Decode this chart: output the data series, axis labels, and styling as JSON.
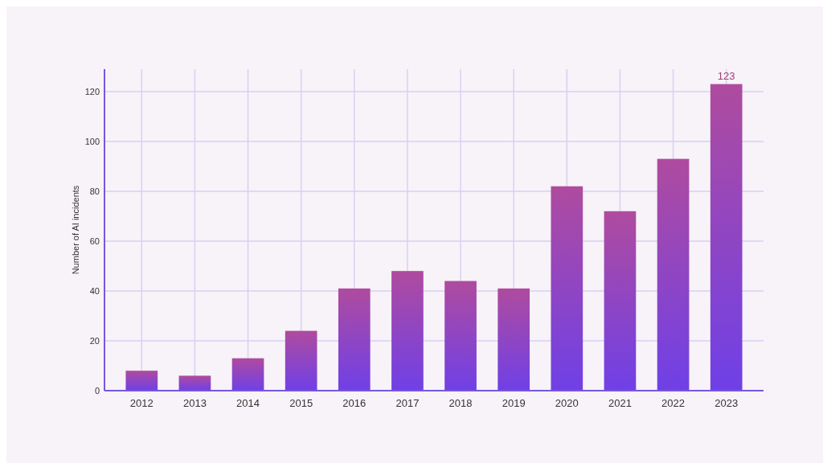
{
  "chart_data": {
    "type": "bar",
    "ylabel": "Number of AI incidents",
    "categories": [
      "2012",
      "2013",
      "2014",
      "2015",
      "2016",
      "2017",
      "2018",
      "2019",
      "2020",
      "2021",
      "2022",
      "2023"
    ],
    "values": [
      8,
      6,
      13,
      24,
      41,
      48,
      44,
      41,
      82,
      72,
      93,
      123
    ],
    "value_labels": [
      null,
      null,
      null,
      null,
      null,
      null,
      null,
      null,
      null,
      null,
      null,
      "123"
    ],
    "color": "#8e46c4",
    "ylim": [
      0,
      129
    ],
    "yticks": [
      0,
      20,
      40,
      60,
      80,
      100,
      120
    ],
    "grid": true
  }
}
